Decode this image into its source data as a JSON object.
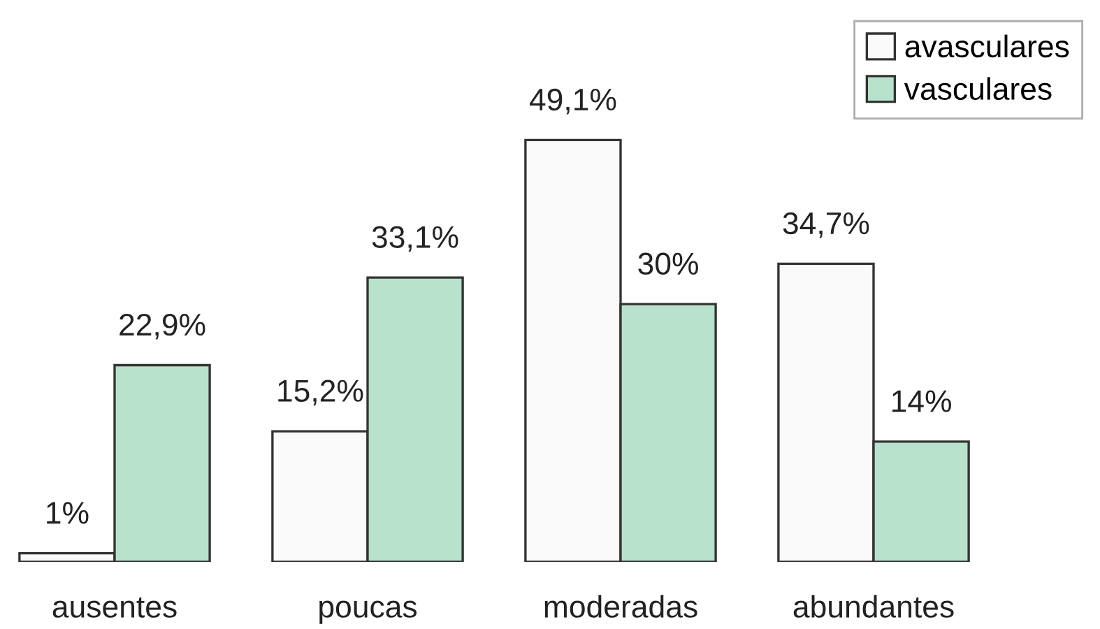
{
  "chart_data": {
    "type": "bar",
    "categories": [
      "ausentes",
      "poucas",
      "moderadas",
      "abundantes"
    ],
    "series": [
      {
        "name": "avasculares",
        "color": "#fafafa",
        "values": [
          1,
          15.2,
          49.1,
          34.7
        ],
        "value_labels": [
          "1%",
          "15,2%",
          "49,1%",
          "34,7%"
        ]
      },
      {
        "name": "vasculares",
        "color": "#b8e2cc",
        "values": [
          22.9,
          33.1,
          30,
          14
        ],
        "value_labels": [
          "22,9%",
          "33,1%",
          "30%",
          "14%"
        ]
      }
    ],
    "legend": "top right",
    "tick_labels": "x",
    "grid": false
  }
}
